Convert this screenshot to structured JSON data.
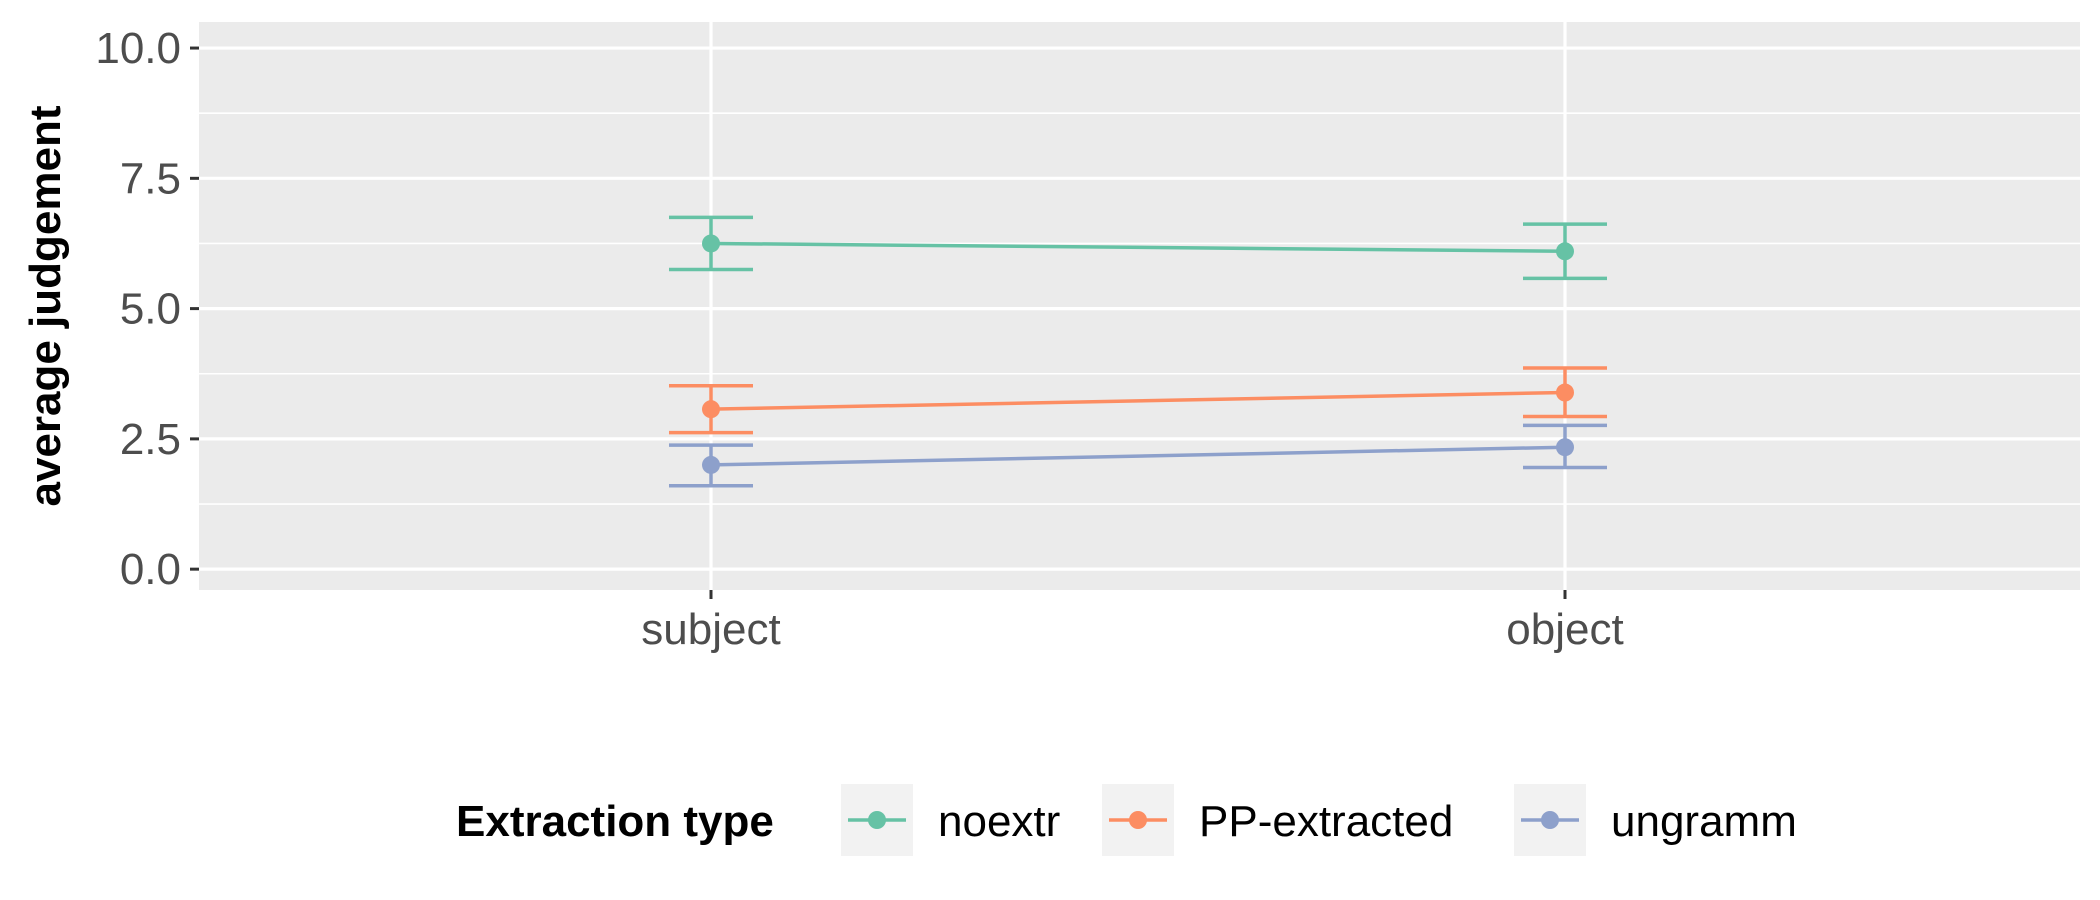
{
  "chart_data": {
    "type": "line",
    "xlabel": "",
    "ylabel": "average judgement",
    "categories": [
      "subject",
      "object"
    ],
    "ylim": [
      -0.4,
      10.5
    ],
    "yticks": [
      0.0,
      2.5,
      5.0,
      7.5,
      10.0
    ],
    "ytick_labels": [
      "0.0",
      "2.5",
      "5.0",
      "7.5",
      "10.0"
    ],
    "grid": true,
    "error_bars": true,
    "series": [
      {
        "name": "noextr",
        "color": "#66C2A5",
        "values": [
          6.25,
          6.1
        ],
        "lower": [
          5.75,
          5.58
        ],
        "upper": [
          6.75,
          6.62
        ]
      },
      {
        "name": "PP-extracted",
        "color": "#FC8D62",
        "values": [
          3.07,
          3.39
        ],
        "lower": [
          2.62,
          2.93
        ],
        "upper": [
          3.52,
          3.86
        ]
      },
      {
        "name": "ungramm",
        "color": "#8DA0CB",
        "values": [
          2.0,
          2.34
        ],
        "lower": [
          1.6,
          1.95
        ],
        "upper": [
          2.38,
          2.76
        ]
      }
    ],
    "legend": {
      "title": "Extraction type",
      "position": "bottom"
    }
  }
}
